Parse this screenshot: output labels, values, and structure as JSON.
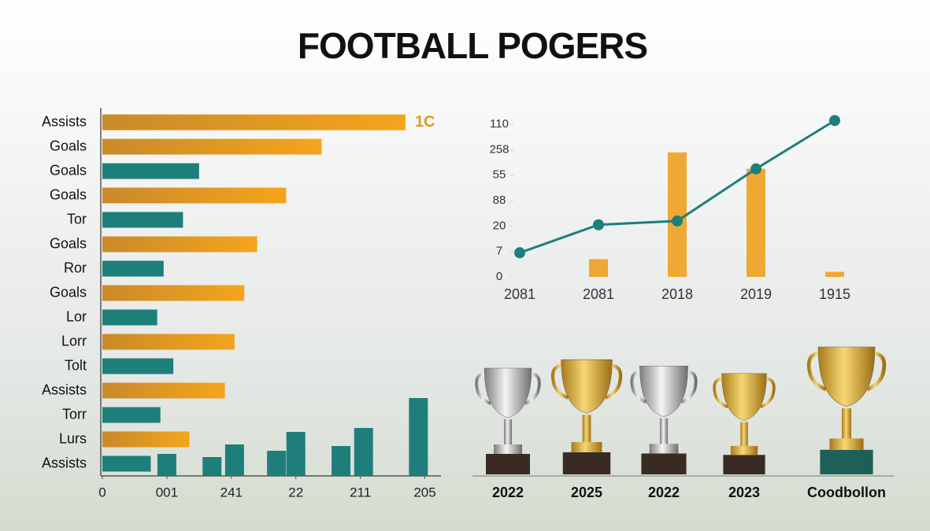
{
  "title": "FOOTBALL POGERS",
  "chart_data": [
    {
      "type": "hbar",
      "categories": [
        "Assists",
        "Goals",
        "Goals",
        "Goals",
        "Tor",
        "Goals",
        "Ror",
        "Goals",
        "Lor",
        "Lorr",
        "Tolt",
        "Assists",
        "Torr",
        "Lurs",
        "Assists"
      ],
      "values": [
        94,
        68,
        30,
        57,
        25,
        48,
        19,
        44,
        17,
        41,
        22,
        38,
        18,
        27,
        15
      ],
      "colors": [
        "#f0a020",
        "#f0a020",
        "#1e7f7a",
        "#f0a020",
        "#1e7f7a",
        "#f0a020",
        "#1e7f7a",
        "#f0a020",
        "#1e7f7a",
        "#f0a020",
        "#1e7f7a",
        "#f0a020",
        "#1e7f7a",
        "#f0a020",
        "#1e7f7a"
      ],
      "annotation": "1C",
      "xlim": [
        0,
        105
      ],
      "xticks": [
        0,
        {
          "value": 20,
          "label": "001"
        },
        {
          "value": 40,
          "label": "241"
        },
        {
          "value": 60,
          "label": "22"
        },
        {
          "value": 80,
          "label": "211"
        },
        {
          "value": 100,
          "label": "205"
        }
      ]
    },
    {
      "type": "column",
      "x": [
        20,
        34,
        41,
        54,
        60,
        74,
        81,
        98
      ],
      "values": [
        28,
        24,
        40,
        32,
        56,
        38,
        61,
        99
      ],
      "color": "#1e7f7a",
      "xlim": [
        0,
        105
      ],
      "ylim": [
        0,
        100
      ]
    },
    {
      "type": "combo",
      "categories": [
        "2081",
        "2081",
        "2018",
        "2019",
        "1915"
      ],
      "series": [
        {
          "type": "bar",
          "color": "#f0a020",
          "values": [
            null,
            14,
            98,
            85,
            4
          ]
        },
        {
          "type": "line",
          "color": "#1e7f7a",
          "values": [
            19,
            41,
            44,
            85,
            123
          ]
        }
      ],
      "ylim": [
        0,
        125
      ],
      "yticks": [
        0,
        {
          "value": 20,
          "label": "7"
        },
        {
          "value": 40,
          "label": "20"
        },
        {
          "value": 60,
          "label": "88"
        },
        {
          "value": 80,
          "label": "55"
        },
        {
          "value": 100,
          "label": "258"
        },
        {
          "value": 120,
          "label": "110"
        }
      ]
    }
  ],
  "trophies": {
    "labels": [
      "2022",
      "2025",
      "2022",
      "2023",
      "Coodbollon"
    ]
  }
}
